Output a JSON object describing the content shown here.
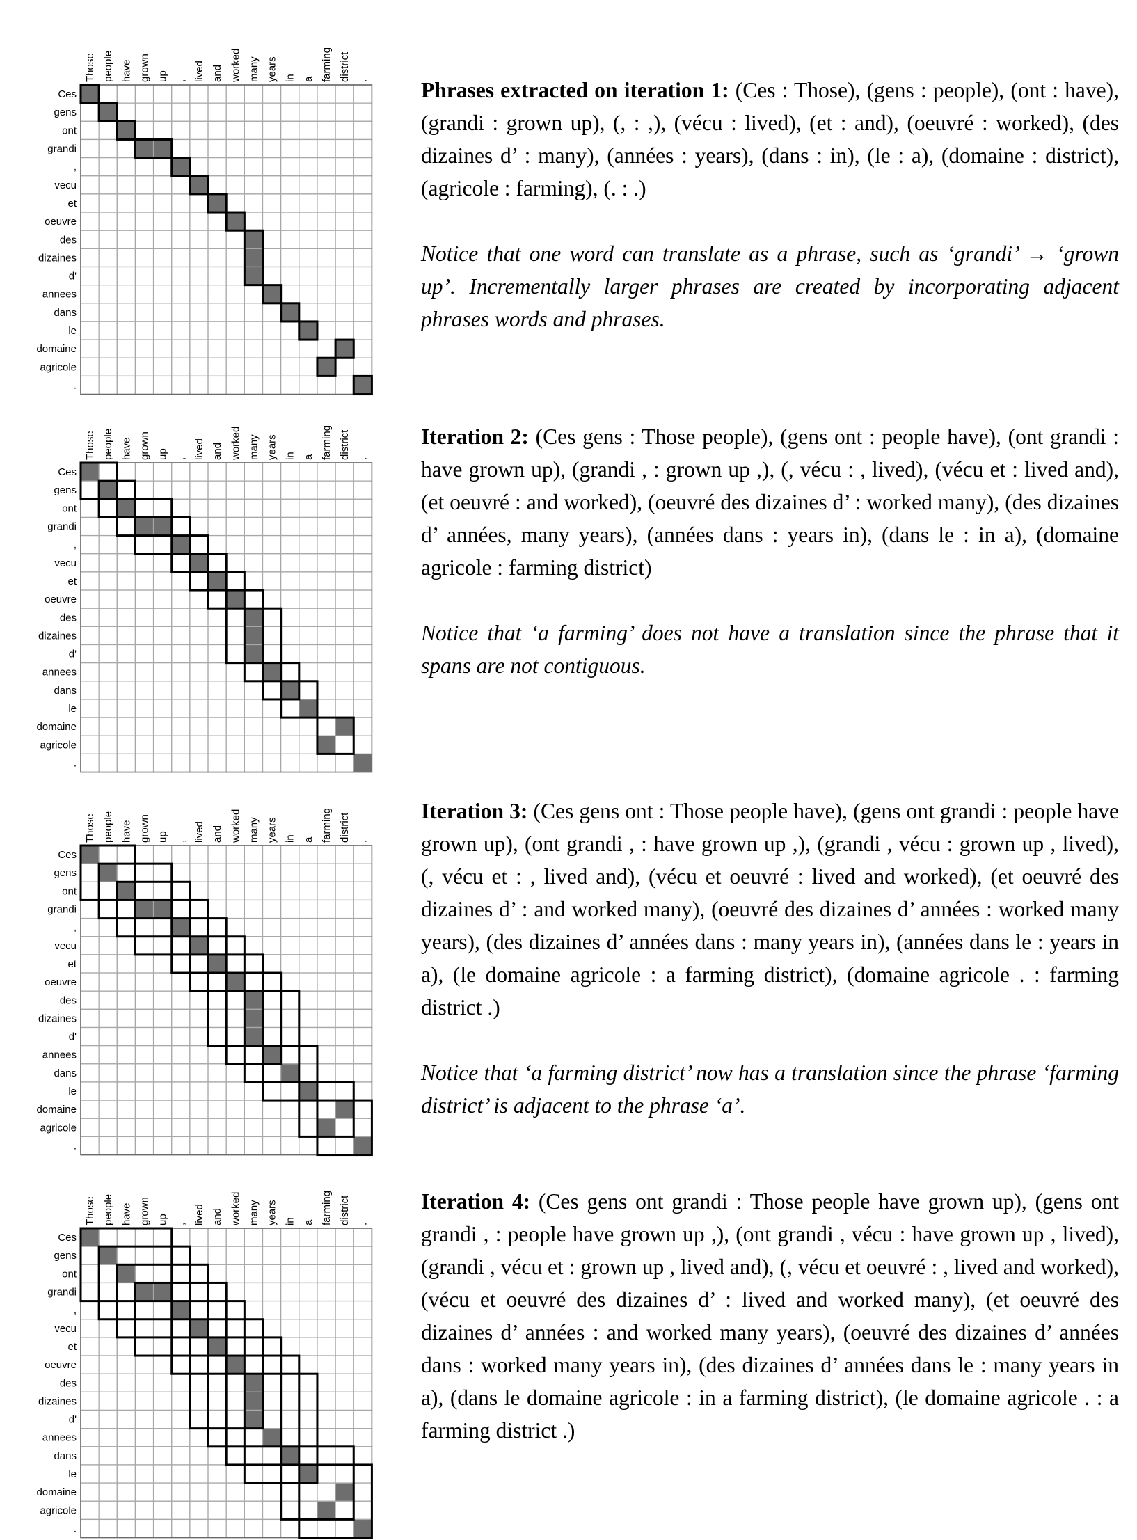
{
  "matrix": {
    "source_words": [
      "Ces",
      "gens",
      "ont",
      "grandi",
      ",",
      "vecu",
      "et",
      "oeuvre",
      "des",
      "dizaines",
      "d'",
      "annees",
      "dans",
      "le",
      "domaine",
      "agricole",
      "."
    ],
    "target_words": [
      "Those",
      "people",
      "have",
      "grown",
      "up",
      ",",
      "lived",
      "and",
      "worked",
      "many",
      "years",
      "in",
      "a",
      "farming",
      "district",
      "."
    ],
    "alignment_points": [
      [
        0,
        0
      ],
      [
        1,
        1
      ],
      [
        2,
        2
      ],
      [
        3,
        3
      ],
      [
        3,
        4
      ],
      [
        4,
        5
      ],
      [
        5,
        6
      ],
      [
        6,
        7
      ],
      [
        7,
        8
      ],
      [
        8,
        9
      ],
      [
        9,
        9
      ],
      [
        10,
        9
      ],
      [
        11,
        10
      ],
      [
        12,
        11
      ],
      [
        13,
        12
      ],
      [
        14,
        14
      ],
      [
        15,
        13
      ],
      [
        16,
        15
      ]
    ]
  },
  "panels": [
    {
      "iteration": 1,
      "heading": "Phrases extracted on iteration 1:",
      "body": " (Ces : Those), (gens : people), (ont : have), (grandi : grown up), (, : ,), (vécu : lived), (et : and), (oeuvré : worked), (des dizaines d’ : many), (années : years), (dans : in), (le : a), (domaine : district), (agricole : farming), (. : .)",
      "note": "Notice that one word can translate as a phrase, such as ‘grandi’ → ‘grown up’. Incrementally larger phrases are created by incor­porating adjacent phrases words and phrases.",
      "phrases": [
        [
          0,
          0,
          0,
          0
        ],
        [
          1,
          1,
          1,
          1
        ],
        [
          2,
          2,
          2,
          2
        ],
        [
          3,
          3,
          3,
          4
        ],
        [
          4,
          4,
          5,
          5
        ],
        [
          5,
          5,
          6,
          6
        ],
        [
          6,
          6,
          7,
          7
        ],
        [
          7,
          7,
          8,
          8
        ],
        [
          8,
          10,
          9,
          9
        ],
        [
          11,
          11,
          10,
          10
        ],
        [
          12,
          12,
          11,
          11
        ],
        [
          13,
          13,
          12,
          12
        ],
        [
          14,
          14,
          14,
          14
        ],
        [
          15,
          15,
          13,
          13
        ],
        [
          16,
          16,
          15,
          15
        ]
      ]
    },
    {
      "iteration": 2,
      "heading": "Iteration 2:",
      "body": " (Ces gens : Those people), (gens ont : people have), (ont grandi : have grown up), (grandi , : grown up ,), (, vécu : , lived), (vécu et : lived and), (et oeuvré : and worked), (oeuvré des dizaines d’ : worked many), (des dizaines d’ années, many years), (années dans : years in), (dans le : in a), (domaine agricole : farming district)",
      "note": "Notice that ‘a farming’ does not have a translation since the phrase that it spans are not contiguous.",
      "phrases": [
        [
          0,
          1,
          0,
          1
        ],
        [
          1,
          2,
          1,
          2
        ],
        [
          2,
          3,
          2,
          4
        ],
        [
          3,
          4,
          3,
          5
        ],
        [
          4,
          5,
          5,
          6
        ],
        [
          5,
          6,
          6,
          7
        ],
        [
          6,
          7,
          7,
          8
        ],
        [
          7,
          10,
          8,
          9
        ],
        [
          8,
          11,
          9,
          10
        ],
        [
          11,
          12,
          10,
          11
        ],
        [
          12,
          13,
          11,
          12
        ],
        [
          14,
          15,
          13,
          14
        ]
      ]
    },
    {
      "iteration": 3,
      "heading": "Iteration 3:",
      "body": " (Ces gens ont : Those people have), (gens ont grandi : people have grown up), (ont grandi , : have grown up ,), (grandi , vécu : grown up , lived), (, vécu et : , lived and), (vécu et oeuvré : lived and worked), (et oeuvré des dizaines d’ : and worked many), (oeuvré des dizaines d’ années : worked many years), (des dizaines d’ années dans : many years in), (années dans le : years in a), (le domaine agricole : a farming district), (domaine agricole . : farming district .)",
      "note": "Notice that ‘a farming district’ now has a translation since the phrase ‘farming district’ is adjacent to the phrase ‘a’.",
      "phrases": [
        [
          0,
          2,
          0,
          2
        ],
        [
          1,
          3,
          1,
          4
        ],
        [
          2,
          4,
          2,
          5
        ],
        [
          3,
          5,
          3,
          6
        ],
        [
          4,
          6,
          5,
          7
        ],
        [
          5,
          7,
          6,
          8
        ],
        [
          6,
          10,
          7,
          9
        ],
        [
          7,
          11,
          8,
          10
        ],
        [
          8,
          12,
          9,
          11
        ],
        [
          11,
          13,
          10,
          12
        ],
        [
          13,
          15,
          12,
          14
        ],
        [
          14,
          16,
          13,
          15
        ]
      ]
    },
    {
      "iteration": 4,
      "heading": "Iteration 4:",
      "body": " (Ces gens ont grandi : Those people have grown up), (gens ont grandi , : people have grown up ,), (ont grandi , vécu : have grown up , lived), (grandi , vécu et : grown up , lived and), (, vécu et oeuvré : , lived and worked), (vécu et oeuvré des dizaines d’ : lived and worked many), (et oeuvré des dizaines d’ années : and worked many years), (oeuvré des dizaines d’ années dans : worked many years in), (des dizaines d’ années dans le : many years in a), (dans le domaine agricole : in a farming district), (le domaine agricole . : a farming district .)",
      "note": "",
      "phrases": [
        [
          0,
          3,
          0,
          4
        ],
        [
          1,
          4,
          1,
          5
        ],
        [
          2,
          5,
          2,
          6
        ],
        [
          3,
          6,
          3,
          7
        ],
        [
          4,
          7,
          5,
          8
        ],
        [
          5,
          10,
          6,
          9
        ],
        [
          6,
          11,
          7,
          10
        ],
        [
          7,
          12,
          8,
          11
        ],
        [
          8,
          13,
          9,
          12
        ],
        [
          12,
          15,
          11,
          14
        ],
        [
          13,
          16,
          12,
          15
        ]
      ]
    }
  ]
}
